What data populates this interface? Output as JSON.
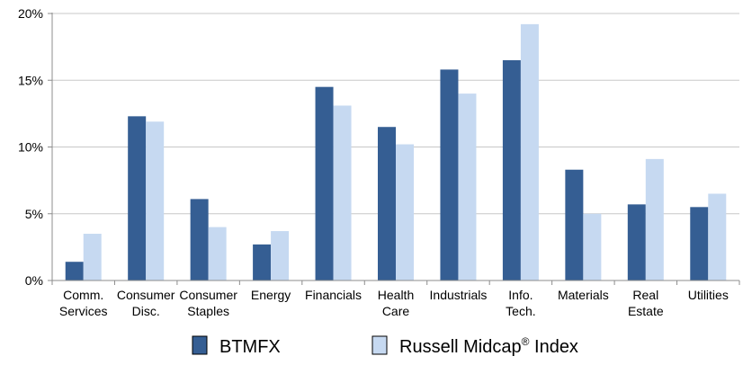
{
  "chart_data": {
    "type": "bar",
    "categories": [
      [
        "Comm.",
        "Services"
      ],
      [
        "Consumer",
        "Disc."
      ],
      [
        "Consumer",
        "Staples"
      ],
      [
        "Energy"
      ],
      [
        "Financials"
      ],
      [
        "Health",
        "Care"
      ],
      [
        "Industrials"
      ],
      [
        "Info.",
        "Tech."
      ],
      [
        "Materials"
      ],
      [
        "Real",
        "Estate"
      ],
      [
        "Utilities"
      ]
    ],
    "series": [
      {
        "name": "BTMFX",
        "color": "#355e93",
        "values": [
          1.4,
          12.3,
          6.1,
          2.7,
          14.5,
          11.5,
          15.8,
          16.5,
          8.3,
          5.7,
          5.5
        ]
      },
      {
        "name": "Russell Midcap",
        "name_sup": "®",
        "name_suffix": " Index",
        "color": "#c6d9f1",
        "values": [
          3.5,
          11.9,
          4.0,
          3.7,
          13.1,
          10.2,
          14.0,
          19.2,
          5.0,
          9.1,
          6.5
        ]
      }
    ],
    "y_ticks": [
      "0%",
      "5%",
      "10%",
      "15%",
      "20%"
    ],
    "y_tick_values": [
      0,
      5,
      10,
      15,
      20
    ],
    "ylim": [
      0,
      20
    ],
    "grid": "horizontal",
    "legend_position": "bottom"
  }
}
